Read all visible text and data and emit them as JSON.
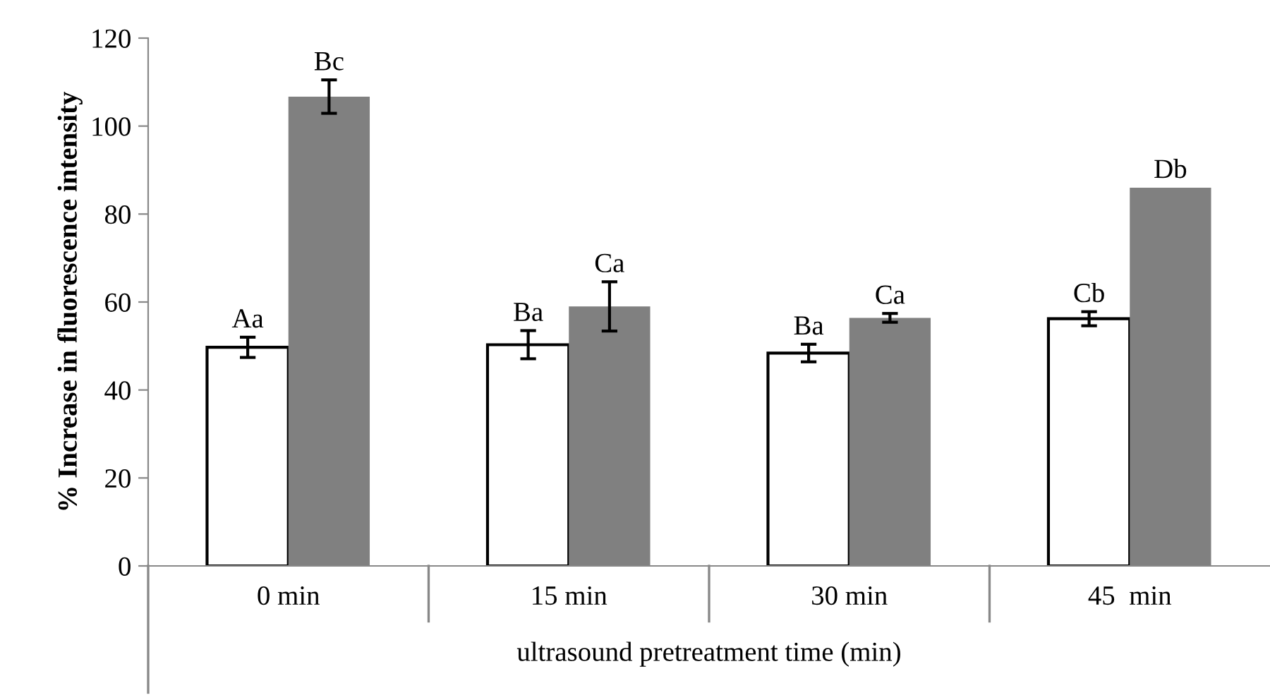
{
  "chart_data": {
    "type": "bar",
    "xlabel": "ultrasound pretreatment time (min)",
    "ylabel": "% Increase in fluorescence intensity",
    "categories": [
      "0 min",
      "15 min",
      "30 min",
      "45  min"
    ],
    "series": [
      {
        "color": "#ffffff",
        "values": [
          49.7,
          50.3,
          48.4,
          56.2
        ],
        "errors": [
          2.3,
          3.2,
          2,
          1.6
        ],
        "value_labels": [
          "Aa",
          "Ba",
          "Ba",
          "Cb"
        ]
      },
      {
        "color": "#808080",
        "values": [
          106.7,
          59.0,
          56.4,
          86.0
        ],
        "errors": [
          3.8,
          5.6,
          1,
          null
        ],
        "value_labels": [
          "Bc",
          "Ca",
          "Ca",
          "Db"
        ]
      }
    ],
    "ylim": [
      0,
      120
    ],
    "yticks": [
      0,
      20,
      40,
      60,
      80,
      100,
      120
    ],
    "grid": false,
    "legend": false
  }
}
